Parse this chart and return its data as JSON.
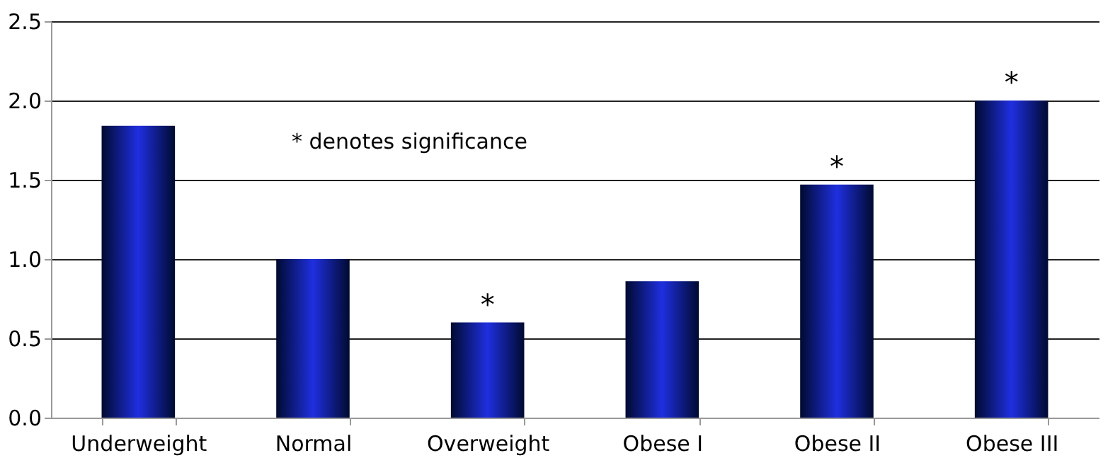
{
  "chart_data": {
    "type": "bar",
    "categories": [
      "Underweight",
      "Normal",
      "Overweight",
      "Obese I",
      "Obese II",
      "Obese III"
    ],
    "values": [
      1.84,
      1.0,
      0.6,
      0.86,
      1.47,
      2.0
    ],
    "color": "#1f2fe0",
    "ylim": [
      0,
      2.5
    ],
    "yticks": [
      {
        "value": 0,
        "label": "0.0"
      },
      {
        "value": 0.5,
        "label": "0.5"
      },
      {
        "value": 1,
        "label": "1.0"
      },
      {
        "value": 1.5,
        "label": "1.5"
      },
      {
        "value": 2,
        "label": "2.0"
      },
      {
        "value": 2.5,
        "label": "2.5"
      }
    ],
    "grid": "y",
    "annotations": [
      "* denotes significance",
      {
        "text": "*",
        "x": "Overweight",
        "y": 0.6
      },
      {
        "text": "*",
        "x": "Obese II",
        "y": 1.47
      },
      {
        "text": "*",
        "x": "Obese III",
        "y": 2.0
      }
    ]
  }
}
